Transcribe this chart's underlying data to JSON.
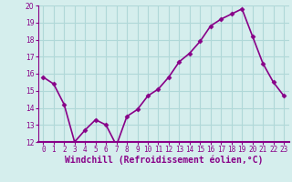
{
  "x": [
    0,
    1,
    2,
    3,
    4,
    5,
    6,
    7,
    8,
    9,
    10,
    11,
    12,
    13,
    14,
    15,
    16,
    17,
    18,
    19,
    20,
    21,
    22,
    23
  ],
  "y": [
    15.8,
    15.4,
    14.2,
    12.0,
    12.7,
    13.3,
    13.0,
    11.8,
    13.5,
    13.9,
    14.7,
    15.1,
    15.8,
    16.7,
    17.2,
    17.9,
    18.8,
    19.2,
    19.5,
    19.8,
    18.2,
    16.6,
    15.5,
    14.7
  ],
  "line_color": "#880088",
  "marker": "D",
  "marker_size": 2.5,
  "background_color": "#d5eeed",
  "grid_color": "#b0d8d8",
  "xlabel": "Windchill (Refroidissement éolien,°C)",
  "ylim": [
    12,
    20
  ],
  "xlim": [
    -0.5,
    23.5
  ],
  "yticks": [
    12,
    13,
    14,
    15,
    16,
    17,
    18,
    19,
    20
  ],
  "xticks": [
    0,
    1,
    2,
    3,
    4,
    5,
    6,
    7,
    8,
    9,
    10,
    11,
    12,
    13,
    14,
    15,
    16,
    17,
    18,
    19,
    20,
    21,
    22,
    23
  ],
  "tick_fontsize": 5.5,
  "xlabel_fontsize": 7,
  "line_width": 1.2,
  "axisline_color": "#880088"
}
